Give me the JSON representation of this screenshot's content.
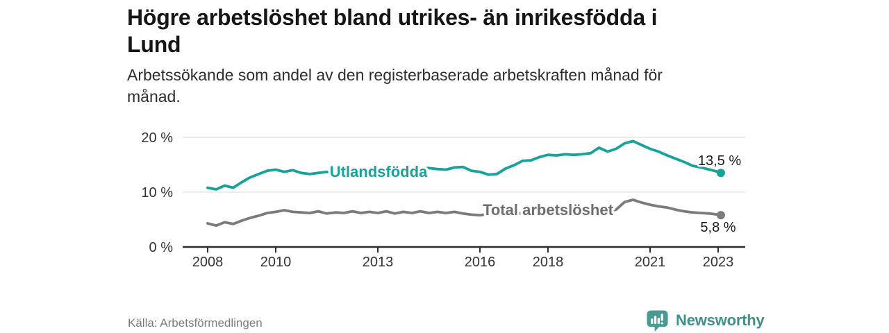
{
  "header": {
    "title": "Högre arbetslöshet bland utrikes- än inrikesfödda i Lund",
    "title_lines": [
      "Högre arbetslöshet bland utrikes- än inrikesfödda i",
      "Lund"
    ],
    "subtitle": "Arbetssökande som andel av den registerbaserade arbetskraften månad för månad.",
    "subtitle_lines": [
      "Arbetssökande som andel av den registerbaserade arbetskraften månad för",
      "månad."
    ]
  },
  "chart_data": {
    "type": "line",
    "title": "Högre arbetslöshet bland utrikes- än inrikesfödda i Lund",
    "subtitle": "Arbetssökande som andel av den registerbaserade arbetskraften månad för månad.",
    "xlabel": "",
    "ylabel": "",
    "x_unit": "decimal_year",
    "xlim": [
      2007.3,
      2023.8
    ],
    "ylim": [
      0,
      21
    ],
    "grid": "horizontal",
    "axis_color": "#2d2d2d",
    "gridline_color": "#e4e4e4",
    "tick_label_color": "#333333",
    "end_label_color": "#1a1a1a",
    "yticks": [
      {
        "value": 0,
        "label": "0 %"
      },
      {
        "value": 10,
        "label": "10 %"
      },
      {
        "value": 20,
        "label": "20 %"
      }
    ],
    "xticks": [
      {
        "value": 2008,
        "label": "2008"
      },
      {
        "value": 2010,
        "label": "2010"
      },
      {
        "value": 2013,
        "label": "2013"
      },
      {
        "value": 2016,
        "label": "2016"
      },
      {
        "value": 2018,
        "label": "2018"
      },
      {
        "value": 2021,
        "label": "2021"
      },
      {
        "value": 2023,
        "label": "2023"
      }
    ],
    "x": [
      2008,
      2008.25,
      2008.5,
      2008.75,
      2009,
      2009.25,
      2009.5,
      2009.75,
      2010,
      2010.25,
      2010.5,
      2010.75,
      2011,
      2011.25,
      2011.5,
      2011.75,
      2012,
      2012.25,
      2012.5,
      2012.75,
      2013,
      2013.25,
      2013.5,
      2013.75,
      2014,
      2014.25,
      2014.5,
      2014.75,
      2015,
      2015.25,
      2015.5,
      2015.75,
      2016,
      2016.25,
      2016.5,
      2016.75,
      2017,
      2017.25,
      2017.5,
      2017.75,
      2018,
      2018.25,
      2018.5,
      2018.75,
      2019,
      2019.25,
      2019.5,
      2019.75,
      2020,
      2020.25,
      2020.5,
      2020.75,
      2021,
      2021.25,
      2021.5,
      2021.75,
      2022,
      2022.25,
      2022.5,
      2022.75,
      2023,
      2023.08
    ],
    "series": [
      {
        "name": "Utlandsfödda",
        "color": "#16a39a",
        "label_color": "#16a39a",
        "end_label": "13,5 %",
        "end_value": 13.5,
        "values": [
          10.8,
          10.5,
          11.2,
          10.8,
          11.8,
          12.7,
          13.3,
          13.9,
          14.1,
          13.7,
          14.0,
          13.5,
          13.3,
          13.5,
          13.7,
          13.4,
          13.6,
          13.8,
          13.6,
          13.8,
          14.0,
          14.3,
          14.0,
          14.2,
          14.1,
          14.4,
          14.4,
          14.2,
          14.1,
          14.5,
          14.6,
          13.9,
          13.7,
          13.2,
          13.3,
          14.3,
          14.9,
          15.7,
          15.8,
          16.4,
          16.8,
          16.7,
          16.9,
          16.8,
          16.9,
          17.1,
          18.1,
          17.4,
          17.9,
          18.9,
          19.3,
          18.6,
          17.9,
          17.4,
          16.7,
          16.1,
          15.5,
          14.8,
          14.5,
          14.1,
          13.7,
          13.5
        ]
      },
      {
        "name": "Total arbetslöshet",
        "color": "#7b7b7b",
        "label_color": "#6e6e6e",
        "end_label": "5,8 %",
        "end_value": 5.8,
        "values": [
          4.3,
          3.9,
          4.5,
          4.2,
          4.8,
          5.3,
          5.7,
          6.2,
          6.4,
          6.7,
          6.4,
          6.3,
          6.2,
          6.5,
          6.1,
          6.3,
          6.2,
          6.5,
          6.2,
          6.4,
          6.2,
          6.5,
          6.1,
          6.4,
          6.2,
          6.5,
          6.2,
          6.4,
          6.2,
          6.4,
          6.1,
          5.9,
          5.8,
          6.0,
          5.9,
          6.1,
          6.0,
          6.2,
          6.0,
          6.2,
          6.1,
          6.3,
          6.1,
          6.3,
          6.2,
          6.4,
          6.3,
          6.5,
          6.8,
          8.2,
          8.6,
          8.1,
          7.7,
          7.4,
          7.2,
          6.8,
          6.5,
          6.3,
          6.2,
          6.1,
          5.9,
          5.8
        ]
      }
    ]
  },
  "footer": {
    "source": "Källa: Arbetsförmedlingen",
    "brand": "Newsworthy",
    "brand_color": "#40908a",
    "logo_color": "#4a9a94"
  }
}
